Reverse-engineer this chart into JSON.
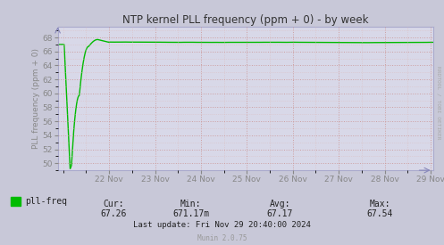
{
  "title": "NTP kernel PLL frequency (ppm + 0) - by week",
  "ylabel": "PLL frequency (ppm + 0)",
  "bg_color": "#d8d8e8",
  "outer_bg_color": "#c8c8d8",
  "line_color": "#00bb00",
  "ylim": [
    49.0,
    69.5
  ],
  "yticks": [
    50,
    52,
    54,
    56,
    58,
    60,
    62,
    64,
    66,
    68
  ],
  "xtick_labels": [
    "22 Nov",
    "23 Nov",
    "24 Nov",
    "25 Nov",
    "26 Nov",
    "27 Nov",
    "28 Nov",
    "29 Nov"
  ],
  "watermark": "RRDTOOL / TOBI OETIKER",
  "legend_label": "pll-freq",
  "legend_color": "#00bb00",
  "cur_label": "Cur:",
  "cur_val": "67.26",
  "min_label": "Min:",
  "min_val": "671.17m",
  "avg_label": "Avg:",
  "avg_val": "67.17",
  "max_label": "Max:",
  "max_val": "67.54",
  "last_update": "Last update: Fri Nov 29 20:40:00 2024",
  "munin_version": "Munin 2.0.75",
  "tick_color": "#888888",
  "grid_color": "#cc9999",
  "grid_color2": "#ddbbbb",
  "spine_color": "#aaaacc",
  "title_color": "#555555"
}
